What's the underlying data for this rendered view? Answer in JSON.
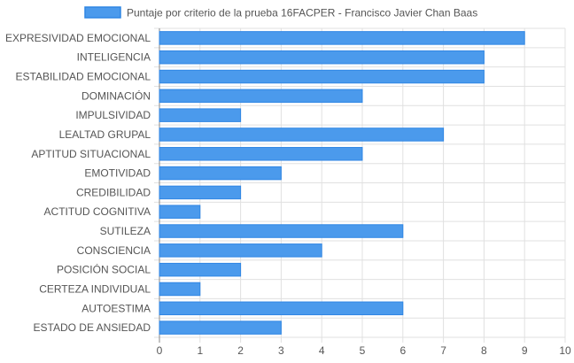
{
  "chart_data": {
    "type": "bar",
    "orientation": "horizontal",
    "title": "",
    "xlabel": "",
    "ylabel": "",
    "xlim": [
      0,
      10
    ],
    "x_ticks": [
      "0",
      "1",
      "2",
      "3",
      "4",
      "5",
      "6",
      "7",
      "8",
      "9",
      "10"
    ],
    "grid": true,
    "legend_position": "top",
    "categories": [
      "EXPRESIVIDAD EMOCIONAL",
      "INTELIGENCIA",
      "ESTABILIDAD EMOCIONAL",
      "DOMINACIÓN",
      "IMPULSIVIDAD",
      "LEALTAD GRUPAL",
      "APTITUD SITUACIONAL",
      "EMOTIVIDAD",
      "CREDIBILIDAD",
      "ACTITUD COGNITIVA",
      "SUTILEZA",
      "CONSCIENCIA",
      "POSICIÓN SOCIAL",
      "CERTEZA INDIVIDUAL",
      "AUTOESTIMA",
      "ESTADO DE ANSIEDAD"
    ],
    "series": [
      {
        "name": "Puntaje por criterio de la prueba 16FACPER - Francisco Javier Chan Baas",
        "values": [
          9,
          8,
          8,
          5,
          2,
          7,
          5,
          3,
          2,
          1,
          6,
          4,
          2,
          1,
          6,
          3
        ]
      }
    ],
    "colors": {
      "bar_fill": "#4b9aec",
      "bar_stroke": "#2f86e4",
      "grid": "#e0e0e0",
      "axis": "#888888",
      "text": "#555555"
    }
  }
}
